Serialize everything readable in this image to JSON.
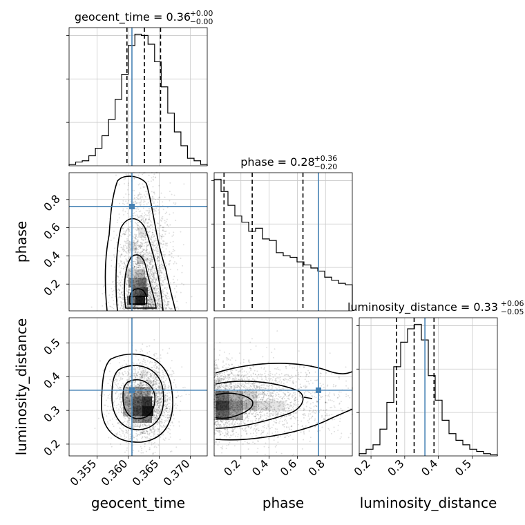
{
  "chart_data": {
    "type": "corner",
    "parameters": [
      "geocent_time",
      "phase",
      "luminosity_distance"
    ],
    "truth_color": "#4682b4",
    "contour_color": "#000000",
    "grid": true,
    "panels": [
      {
        "parameter": "geocent_time",
        "title_prefix": "geocent_time = 0.36",
        "sup": "+0.00",
        "sub": "−0.00",
        "xlabel": "geocent_time",
        "range": [
          0.3505,
          0.3727
        ],
        "ticks": [
          0.355,
          0.36,
          0.365,
          0.37
        ],
        "tick_labels": [
          "0.355",
          "0.360",
          "0.365",
          "0.370"
        ],
        "quantiles": [
          0.3598,
          0.3626,
          0.3652
        ],
        "truth": 0.3606,
        "hist_max": 10.5,
        "hist_counts": [
          0.1,
          0.3,
          0.4,
          0.8,
          1.4,
          2.4,
          3.7,
          5.3,
          7.3,
          9.6,
          10.5,
          10.4,
          9.7,
          8.3,
          6.3,
          4.2,
          2.7,
          1.6,
          0.6,
          0.4,
          0.1
        ]
      },
      {
        "parameter": "phase",
        "title_prefix": "phase = 0.28",
        "sup": "+0.36",
        "sub": "−0.20",
        "xlabel": "phase",
        "range": [
          0.01,
          0.99
        ],
        "ticks": [
          0.2,
          0.4,
          0.6,
          0.8
        ],
        "tick_labels": [
          "0.2",
          "0.4",
          "0.6",
          "0.8"
        ],
        "quantiles": [
          0.08,
          0.28,
          0.64
        ],
        "truth": 0.75,
        "hist_max": 8.6,
        "hist_counts": [
          8.6,
          7.8,
          6.9,
          6.2,
          5.8,
          5.2,
          5.4,
          4.7,
          4.6,
          3.8,
          3.6,
          3.5,
          3.2,
          3.0,
          2.8,
          2.6,
          2.2,
          2.0,
          1.8,
          1.7
        ]
      },
      {
        "parameter": "luminosity_distance",
        "title_prefix": "luminosity_distance = 0.33",
        "sup": "+0.06",
        "sub": "−0.05",
        "xlabel": "luminosity_distance",
        "range": [
          0.165,
          0.575
        ],
        "ticks": [
          0.2,
          0.3,
          0.4,
          0.5
        ],
        "tick_labels": [
          "0.2",
          "0.3",
          "0.4",
          "0.5"
        ],
        "quantiles": [
          0.276,
          0.328,
          0.387
        ],
        "truth": 0.36,
        "hist_max": 5.9,
        "hist_counts": [
          0.1,
          0.3,
          0.5,
          1.2,
          2.4,
          4.0,
          5.1,
          5.7,
          5.9,
          5.2,
          3.6,
          2.5,
          1.6,
          1.0,
          0.7,
          0.5,
          0.3,
          0.2,
          0.1,
          0.05
        ]
      }
    ],
    "axis_ticks": {
      "phase_y": {
        "values": [
          0.2,
          0.4,
          0.6,
          0.8
        ],
        "labels": [
          "0.2",
          "0.4",
          "0.6",
          "0.8"
        ]
      },
      "distance_y": {
        "values": [
          0.2,
          0.3,
          0.4,
          0.5
        ],
        "labels": [
          "0.2",
          "0.3",
          "0.4",
          "0.5"
        ]
      }
    },
    "ylabels": {
      "phase": "phase",
      "distance": "luminosity_distance"
    }
  }
}
